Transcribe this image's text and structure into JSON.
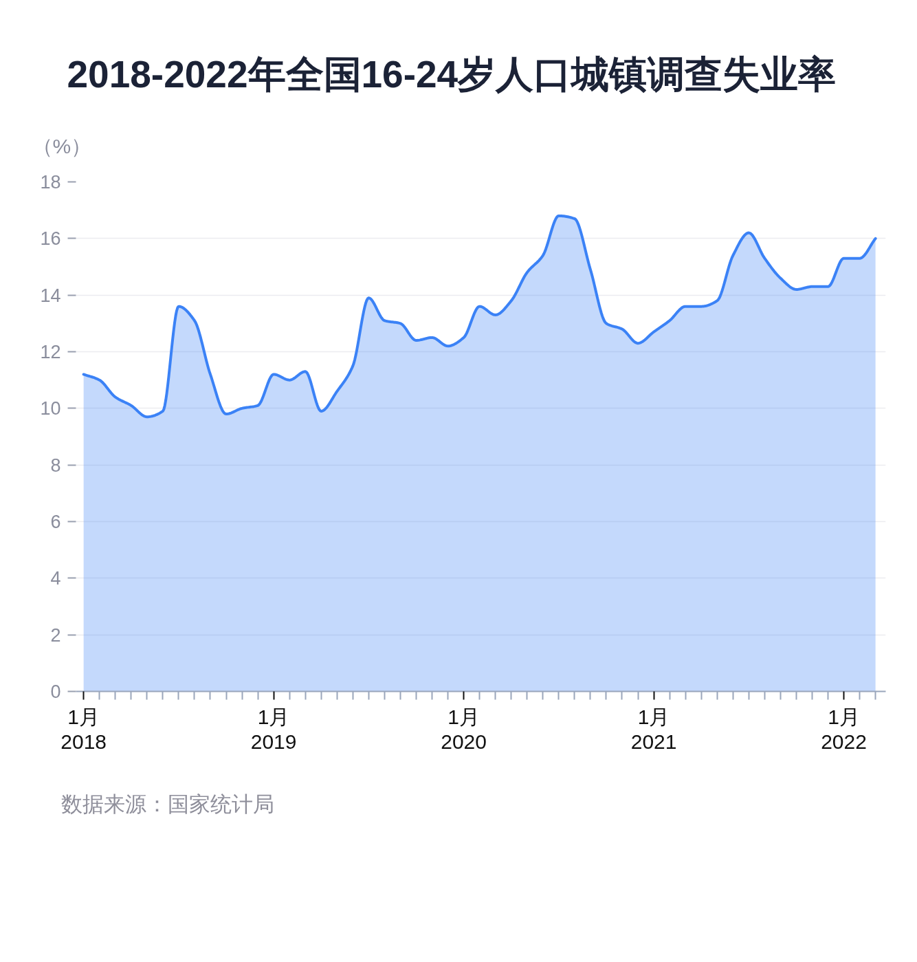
{
  "chart_data": {
    "type": "area",
    "title": "2018-2022年全国16-24岁人口城镇调查失业率",
    "ylabel": "（%）",
    "x": [
      "2018-01",
      "2018-02",
      "2018-03",
      "2018-04",
      "2018-05",
      "2018-06",
      "2018-07",
      "2018-08",
      "2018-09",
      "2018-10",
      "2018-11",
      "2018-12",
      "2019-01",
      "2019-02",
      "2019-03",
      "2019-04",
      "2019-05",
      "2019-06",
      "2019-07",
      "2019-08",
      "2019-09",
      "2019-10",
      "2019-11",
      "2019-12",
      "2020-01",
      "2020-02",
      "2020-03",
      "2020-04",
      "2020-05",
      "2020-06",
      "2020-07",
      "2020-08",
      "2020-09",
      "2020-10",
      "2020-11",
      "2020-12",
      "2021-01",
      "2021-02",
      "2021-03",
      "2021-04",
      "2021-05",
      "2021-06",
      "2021-07",
      "2021-08",
      "2021-09",
      "2021-10",
      "2021-11",
      "2021-12",
      "2022-01",
      "2022-02",
      "2022-03"
    ],
    "series": [
      {
        "color": "#3b82f6",
        "values": [
          11.2,
          11.0,
          10.4,
          10.1,
          9.7,
          9.9,
          13.6,
          13.1,
          11.2,
          9.8,
          10.0,
          10.1,
          11.2,
          11.0,
          11.3,
          9.9,
          10.6,
          11.5,
          13.9,
          13.1,
          13.0,
          12.4,
          12.5,
          12.2,
          12.5,
          13.6,
          13.3,
          13.8,
          14.8,
          15.4,
          16.8,
          16.7,
          14.9,
          13.0,
          12.8,
          12.3,
          12.7,
          13.1,
          13.6,
          13.6,
          13.8,
          15.4,
          16.2,
          15.3,
          14.6,
          14.2,
          14.3,
          14.3,
          15.3,
          15.3,
          16.0
        ]
      }
    ],
    "xlim": [
      "2017-12-17",
      "2022-03-21"
    ],
    "xticks": [
      {
        "value": "2018-01",
        "label": "1月\n2018"
      },
      {
        "value": "2018-02",
        "label": null
      },
      {
        "value": "2018-03",
        "label": null
      },
      {
        "value": "2018-04",
        "label": null
      },
      {
        "value": "2018-05",
        "label": null
      },
      {
        "value": "2018-06",
        "label": null
      },
      {
        "value": "2018-07",
        "label": null
      },
      {
        "value": "2018-08",
        "label": null
      },
      {
        "value": "2018-09",
        "label": null
      },
      {
        "value": "2018-10",
        "label": null
      },
      {
        "value": "2018-11",
        "label": null
      },
      {
        "value": "2018-12",
        "label": null
      },
      {
        "value": "2019-01",
        "label": "1月\n2019"
      },
      {
        "value": "2019-02",
        "label": null
      },
      {
        "value": "2019-03",
        "label": null
      },
      {
        "value": "2019-04",
        "label": null
      },
      {
        "value": "2019-05",
        "label": null
      },
      {
        "value": "2019-06",
        "label": null
      },
      {
        "value": "2019-07",
        "label": null
      },
      {
        "value": "2019-08",
        "label": null
      },
      {
        "value": "2019-09",
        "label": null
      },
      {
        "value": "2019-10",
        "label": null
      },
      {
        "value": "2019-11",
        "label": null
      },
      {
        "value": "2019-12",
        "label": null
      },
      {
        "value": "2020-01",
        "label": "1月\n2020"
      },
      {
        "value": "2020-02",
        "label": null
      },
      {
        "value": "2020-03",
        "label": null
      },
      {
        "value": "2020-04",
        "label": null
      },
      {
        "value": "2020-05",
        "label": null
      },
      {
        "value": "2020-06",
        "label": null
      },
      {
        "value": "2020-07",
        "label": null
      },
      {
        "value": "2020-08",
        "label": null
      },
      {
        "value": "2020-09",
        "label": null
      },
      {
        "value": "2020-10",
        "label": null
      },
      {
        "value": "2020-11",
        "label": null
      },
      {
        "value": "2020-12",
        "label": null
      },
      {
        "value": "2021-01",
        "label": "1月\n2021"
      },
      {
        "value": "2021-02",
        "label": null
      },
      {
        "value": "2021-03",
        "label": null
      },
      {
        "value": "2021-04",
        "label": null
      },
      {
        "value": "2021-05",
        "label": null
      },
      {
        "value": "2021-06",
        "label": null
      },
      {
        "value": "2021-07",
        "label": null
      },
      {
        "value": "2021-08",
        "label": null
      },
      {
        "value": "2021-09",
        "label": null
      },
      {
        "value": "2021-10",
        "label": null
      },
      {
        "value": "2021-11",
        "label": null
      },
      {
        "value": "2021-12",
        "label": null
      },
      {
        "value": "2022-01",
        "label": "1月\n2022"
      },
      {
        "value": "2022-02",
        "label": null
      },
      {
        "value": "2022-03",
        "label": null
      }
    ],
    "ylim": [
      0,
      18
    ],
    "yticks": [
      0,
      2,
      4,
      6,
      8,
      10,
      12,
      14,
      16,
      18
    ],
    "grid": "y",
    "annotations": [
      "数据来源：国家统计局"
    ]
  }
}
